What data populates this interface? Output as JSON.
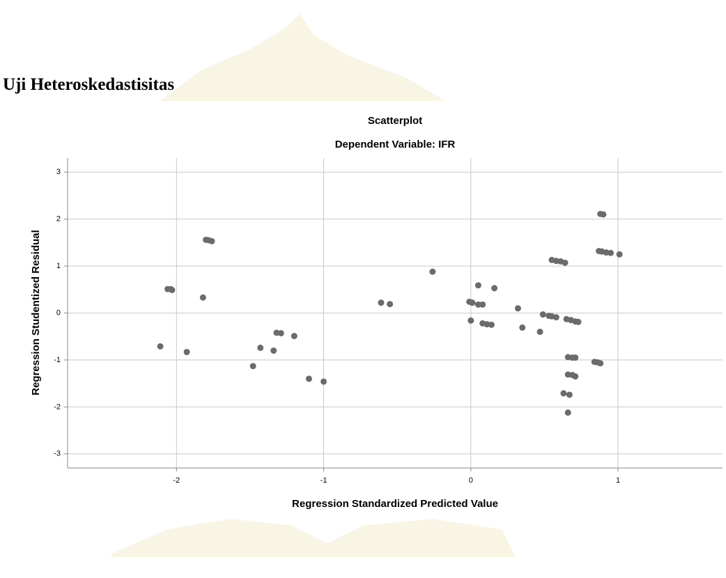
{
  "heading": "Uji Heteroskedastisitas",
  "chart_data": {
    "type": "scatter",
    "title": "Scatterplot",
    "subtitle": "Dependent Variable: IFR",
    "x_label": "Regression Standardized Predicted Value",
    "y_label": "Regression Studentized Residual",
    "color": "#6b6b6b",
    "grid": true,
    "xlim": [
      -2.74,
      1.71
    ],
    "ylim": [
      -3.3,
      3.3
    ],
    "xticks": [
      -2,
      -1,
      0,
      1
    ],
    "yticks": [
      -3,
      -2,
      -1,
      0,
      1,
      2,
      3
    ],
    "x": [
      -2.11,
      -2.06,
      -2.04,
      -2.03,
      -1.93,
      -1.82,
      -1.8,
      -1.78,
      -1.76,
      -1.48,
      -1.43,
      -1.34,
      -1.32,
      -1.29,
      -1.2,
      -1.1,
      -1.0,
      -0.61,
      -0.55,
      -0.26,
      -0.01,
      0.01,
      0.0,
      0.05,
      0.05,
      0.08,
      0.08,
      0.11,
      0.14,
      0.16,
      0.32,
      0.35,
      0.47,
      0.49,
      0.53,
      0.55,
      0.58,
      0.55,
      0.58,
      0.61,
      0.64,
      0.65,
      0.68,
      0.71,
      0.73,
      0.66,
      0.69,
      0.71,
      0.63,
      0.67,
      0.66,
      0.69,
      0.71,
      0.66,
      0.84,
      0.86,
      0.88,
      0.88,
      0.9,
      0.87,
      0.89,
      0.92,
      0.95,
      1.01
    ],
    "values": [
      -0.71,
      0.51,
      0.51,
      0.49,
      -0.83,
      0.33,
      1.56,
      1.55,
      1.53,
      -1.13,
      -0.74,
      -0.8,
      -0.42,
      -0.43,
      -0.49,
      -1.4,
      -1.46,
      0.22,
      0.19,
      0.88,
      0.24,
      0.22,
      -0.16,
      0.59,
      0.18,
      0.18,
      -0.22,
      -0.24,
      -0.25,
      0.53,
      0.1,
      -0.31,
      -0.4,
      -0.03,
      -0.06,
      -0.07,
      -0.09,
      1.13,
      1.11,
      1.1,
      1.07,
      -0.13,
      -0.15,
      -0.18,
      -0.19,
      -0.94,
      -0.95,
      -0.95,
      -1.71,
      -1.74,
      -1.31,
      -1.32,
      -1.35,
      -2.12,
      -1.04,
      -1.05,
      -1.07,
      2.11,
      2.1,
      1.32,
      1.31,
      1.29,
      1.28,
      1.25
    ]
  }
}
